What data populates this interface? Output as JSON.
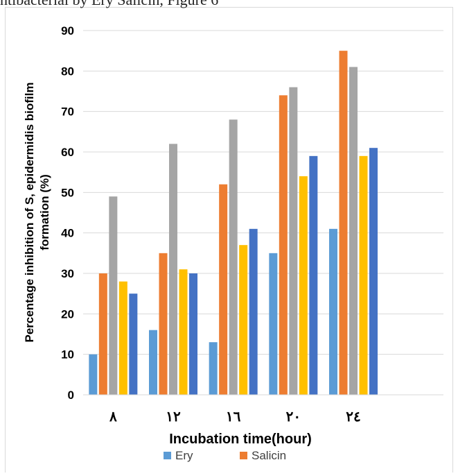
{
  "page": {
    "top_text": "ntibacterial by Ery Salicin, Figure 6"
  },
  "chart_data": {
    "type": "bar",
    "title": "",
    "xlabel": "Incubation time(hour)",
    "ylabel_lines": [
      "Percentage inhibition of S, epidermidis biofilm",
      "formation (%)"
    ],
    "categories": [
      "٨",
      "١٢",
      "١٦",
      "٢٠",
      "٢٤"
    ],
    "ylim": [
      0,
      90
    ],
    "yticks": [
      "0",
      "10",
      "20",
      "30",
      "40",
      "50",
      "60",
      "70",
      "80",
      "90"
    ],
    "grid": true,
    "legend_position": "bottom",
    "series": [
      {
        "name": "Ery",
        "color": "#5B9BD5",
        "values": [
          10,
          16,
          13,
          35,
          41
        ]
      },
      {
        "name": "Salicin",
        "color": "#ED7D31",
        "values": [
          30,
          35,
          52,
          74,
          85
        ]
      },
      {
        "color": "#A5A5A5",
        "values": [
          49,
          62,
          68,
          76,
          81
        ]
      },
      {
        "color": "#FFC000",
        "values": [
          28,
          31,
          37,
          54,
          59
        ]
      },
      {
        "color": "#4472C4",
        "values": [
          25,
          30,
          41,
          59,
          61
        ]
      }
    ]
  }
}
